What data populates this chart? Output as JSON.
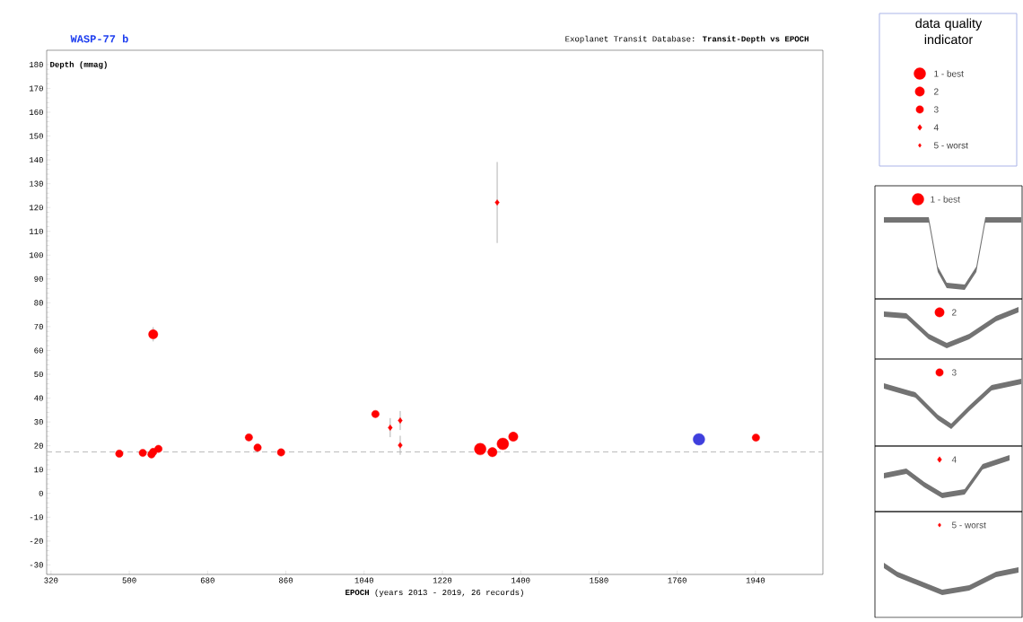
{
  "chart_data": {
    "type": "scatter",
    "title": "WASP-77 b",
    "subtitle": "Exoplanet Transit Database:  **Transit-Depth vs EPOCH**",
    "xlabel": "**EPOCH**  (years 2013 - 2019, 26 records)",
    "ylabel": "Depth (mmag)",
    "legend_title": "data quality indicator",
    "legend": "right",
    "xlim": [
      310,
      2095
    ],
    "xticks": [
      320,
      500,
      680,
      860,
      1040,
      1220,
      1400,
      1580,
      1760,
      1940
    ],
    "ylim": [
      -34,
      186
    ],
    "yticks": [
      -30,
      -20,
      -10,
      0,
      10,
      20,
      30,
      40,
      50,
      60,
      70,
      80,
      90,
      100,
      110,
      120,
      130,
      140,
      150,
      160,
      170,
      180
    ],
    "ref_lines": [
      {
        "axis": "y",
        "value": 17.4,
        "color": "#bbbbbb",
        "line_style": "dashed"
      }
    ],
    "series": [
      {
        "name": "1 - best",
        "color": "#ff0000",
        "marker": "circle",
        "x": [
          1307,
          1359
        ],
        "values": [
          18.6,
          20.8
        ]
      },
      {
        "name": "2",
        "color": "#ff0000",
        "marker": "circle",
        "x": [
          555,
          1335,
          1383
        ],
        "values": [
          66.8,
          17.3,
          23.8
        ],
        "errors": [
          3,
          null,
          null
        ]
      },
      {
        "name": "3",
        "color": "#ff0000",
        "marker": "circle",
        "x": [
          477,
          531,
          551,
          555,
          567,
          775,
          795,
          849,
          1066,
          1941
        ],
        "values": [
          16.7,
          17.0,
          16.4,
          17.4,
          18.7,
          23.5,
          19.2,
          17.2,
          33.3,
          23.4
        ]
      },
      {
        "name": "4",
        "color": "#ff0000",
        "marker": "diamond",
        "x": [
          1100,
          1123,
          1123,
          1346
        ],
        "values": [
          27.6,
          30.6,
          20.2,
          122.1
        ],
        "errors": [
          4,
          4,
          4,
          17
        ]
      },
      {
        "name": "5 - worst",
        "color": "#ff0000",
        "marker": "diamond"
      },
      {
        "color": "#3f3fdd",
        "marker": "circle",
        "x": [
          1810
        ],
        "values": [
          22.7
        ]
      }
    ]
  }
}
